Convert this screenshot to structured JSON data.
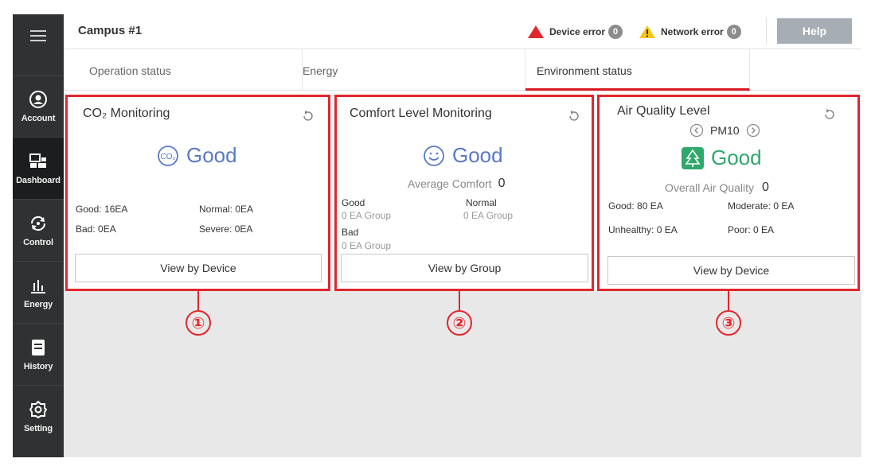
{
  "sidebar": {
    "items": [
      {
        "label": "Account",
        "icon": "user-icon"
      },
      {
        "label": "Dashboard",
        "icon": "dashboard-icon"
      },
      {
        "label": "Control",
        "icon": "control-icon"
      },
      {
        "label": "Energy",
        "icon": "energy-chart-icon"
      },
      {
        "label": "History",
        "icon": "history-icon"
      },
      {
        "label": "Setting",
        "icon": "gear-icon"
      }
    ]
  },
  "header": {
    "title": "Campus #1",
    "device_error_label": "Device error",
    "device_error_count": "0",
    "network_error_label": "Network error",
    "network_error_count": "0",
    "help_label": "Help"
  },
  "tabs": [
    {
      "label": "Operation status"
    },
    {
      "label": "Energy"
    },
    {
      "label": "Environment status"
    }
  ],
  "cards": {
    "co2": {
      "title": "CO₂ Monitoring",
      "status": "Good",
      "good": "Good: 16EA",
      "normal": "Normal: 0EA",
      "bad": "Bad: 0EA",
      "severe": "Severe: 0EA",
      "button": "View by Device",
      "callout": "①"
    },
    "comfort": {
      "title": "Comfort Level Monitoring",
      "status": "Good",
      "avg_label": "Average Comfort",
      "avg_value": "0",
      "good_label": "Good",
      "good_value": "0 EA Group",
      "normal_label": "Normal",
      "normal_value": "0 EA Group",
      "bad_label": "Bad",
      "bad_value": "0 EA Group",
      "button": "View by Group",
      "callout": "②"
    },
    "air": {
      "title": "Air Quality Level",
      "pm_label": "PM10",
      "status": "Good",
      "overall_label": "Overall Air Quality",
      "overall_value": "0",
      "good": "Good: 80 EA",
      "moderate": "Moderate: 0 EA",
      "unhealthy": "Unhealthy: 0 EA",
      "poor": "Poor: 0 EA",
      "button": "View by Device",
      "callout": "③"
    }
  },
  "colors": {
    "accent_red": "#e2262d",
    "good_blue": "#5a78c8",
    "good_green": "#2fa86b",
    "sidebar_bg": "#2f3132"
  }
}
